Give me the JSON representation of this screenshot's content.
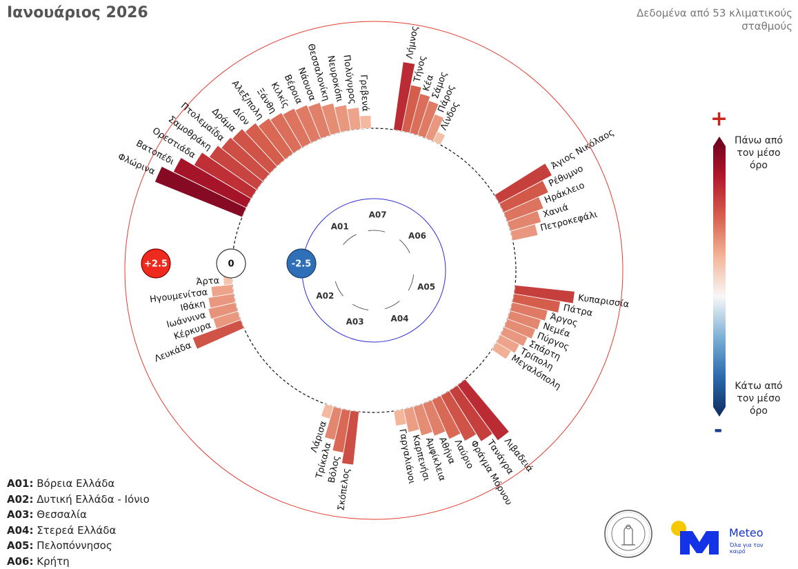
{
  "header": {
    "title": "Ιανουάριος 2026",
    "note": "Δεδομένα από 53 κλιματικούς σταθμούς"
  },
  "colorbar": {
    "plus": "+",
    "minus": "-",
    "above_label": "Πάνω από τον μέσο όρο",
    "below_label": "Κάτω από τον μέσο όρο",
    "range": [
      -2.5,
      2.5
    ],
    "colors_low_to_high": [
      "#0d2b5e",
      "#2c6aad",
      "#7fb2d6",
      "#f7f7f7",
      "#f3b599",
      "#d6604d",
      "#b2182b",
      "#67001f"
    ]
  },
  "legend": [
    {
      "code": "A01:",
      "name": "Βόρεια Ελλάδα"
    },
    {
      "code": "A02:",
      "name": "Δυτική Ελλάδα - Ιόνιο"
    },
    {
      "code": "A03:",
      "name": "Θεσσαλία"
    },
    {
      "code": "A04:",
      "name": "Στερεά Ελλάδα"
    },
    {
      "code": "A05:",
      "name": "Πελοπόννησος"
    },
    {
      "code": "A06:",
      "name": "Κρήτη"
    }
  ],
  "logos": {
    "meteo_name": "Meteo",
    "meteo_tagline": "Όλα για τον καιρό"
  },
  "chart_data": {
    "type": "bar",
    "layout": "radial",
    "title": "Ιανουάριος 2026",
    "value_range": [
      -2.5,
      2.5
    ],
    "scale_markers": [
      "+2.5",
      "0",
      "-2.5"
    ],
    "region_labels": [
      "A01",
      "A02",
      "A03",
      "A04",
      "A05",
      "A06",
      "A07"
    ],
    "groups": [
      {
        "code": "A01",
        "stations": [
          {
            "name": "Φλώρινα",
            "value": 2.2
          },
          {
            "name": "Βατοπέδι",
            "value": 1.9
          },
          {
            "name": "Ορεστιάδα",
            "value": 1.55
          },
          {
            "name": "Σαμοθράκη",
            "value": 1.35
          },
          {
            "name": "Πτολεμαΐδα",
            "value": 1.25
          },
          {
            "name": "Δράμα",
            "value": 1.2
          },
          {
            "name": "Δίον",
            "value": 1.1
          },
          {
            "name": "Αλεξ/πολη",
            "value": 1.0
          },
          {
            "name": "Ξάνθη",
            "value": 0.95
          },
          {
            "name": "Κιλκίς",
            "value": 0.9
          },
          {
            "name": "Βέροια",
            "value": 0.85
          },
          {
            "name": "Νάουσα",
            "value": 0.8
          },
          {
            "name": "Θεσσαλονίκη",
            "value": 0.7
          },
          {
            "name": "Νευροκόπι",
            "value": 0.6
          },
          {
            "name": "Πολύγυρος",
            "value": 0.5
          },
          {
            "name": "Γρεβενά",
            "value": 0.3
          }
        ]
      },
      {
        "code": "A07",
        "stations": [
          {
            "name": "Λήμνος",
            "value": 1.6
          },
          {
            "name": "Τήνος",
            "value": 1.1
          },
          {
            "name": "Κέα",
            "value": 0.95
          },
          {
            "name": "Σάμος",
            "value": 0.85
          },
          {
            "name": "Πάρος",
            "value": 0.6
          },
          {
            "name": "Λίνδος",
            "value": 0.25
          }
        ]
      },
      {
        "code": "A06",
        "stations": [
          {
            "name": "Άγιος Νικόλαος",
            "value": 1.4
          },
          {
            "name": "Ρέθυμνο",
            "value": 1.15
          },
          {
            "name": "Ηράκλειο",
            "value": 0.9
          },
          {
            "name": "Χανιά",
            "value": 0.75
          },
          {
            "name": "Πετροκεφάλι",
            "value": 0.6
          }
        ]
      },
      {
        "code": "A05",
        "stations": [
          {
            "name": "Κυπαρισσία",
            "value": 1.4
          },
          {
            "name": "Πάτρα",
            "value": 1.1
          },
          {
            "name": "Άργος",
            "value": 0.85
          },
          {
            "name": "Νεμέα",
            "value": 0.75
          },
          {
            "name": "Πύργος",
            "value": 0.7
          },
          {
            "name": "Σπάρτη",
            "value": 0.6
          },
          {
            "name": "Τρίπολη",
            "value": 0.5
          },
          {
            "name": "Μεγαλόπολη",
            "value": 0.4
          }
        ]
      },
      {
        "code": "A04",
        "stations": [
          {
            "name": "Λιβαδειά",
            "value": 1.6
          },
          {
            "name": "Τανάγρα",
            "value": 1.4
          },
          {
            "name": "Φράγμα Μόρνου",
            "value": 1.2
          },
          {
            "name": "Λαύριο",
            "value": 1.0
          },
          {
            "name": "Αθήνα",
            "value": 0.8
          },
          {
            "name": "Αμφίκλεια",
            "value": 0.7
          },
          {
            "name": "Καρπενήσι",
            "value": 0.55
          },
          {
            "name": "Γαργαλιάνοι",
            "value": 0.35
          }
        ]
      },
      {
        "code": "A03",
        "stations": [
          {
            "name": "Σκόπελος",
            "value": 1.25
          },
          {
            "name": "Βόλος",
            "value": 1.0
          },
          {
            "name": "Τρίκαλα",
            "value": 0.75
          },
          {
            "name": "Λάρισα",
            "value": 0.3
          }
        ]
      },
      {
        "code": "A02",
        "stations": [
          {
            "name": "Λευκάδα",
            "value": 1.2
          },
          {
            "name": "Κέρκυρα",
            "value": 0.6
          },
          {
            "name": "Ιωάννινα",
            "value": 0.65
          },
          {
            "name": "Ιθάκη",
            "value": 0.6
          },
          {
            "name": "Ηγουμενίτσα",
            "value": 0.5
          },
          {
            "name": "Άρτα",
            "value": 0.2
          }
        ]
      }
    ]
  }
}
